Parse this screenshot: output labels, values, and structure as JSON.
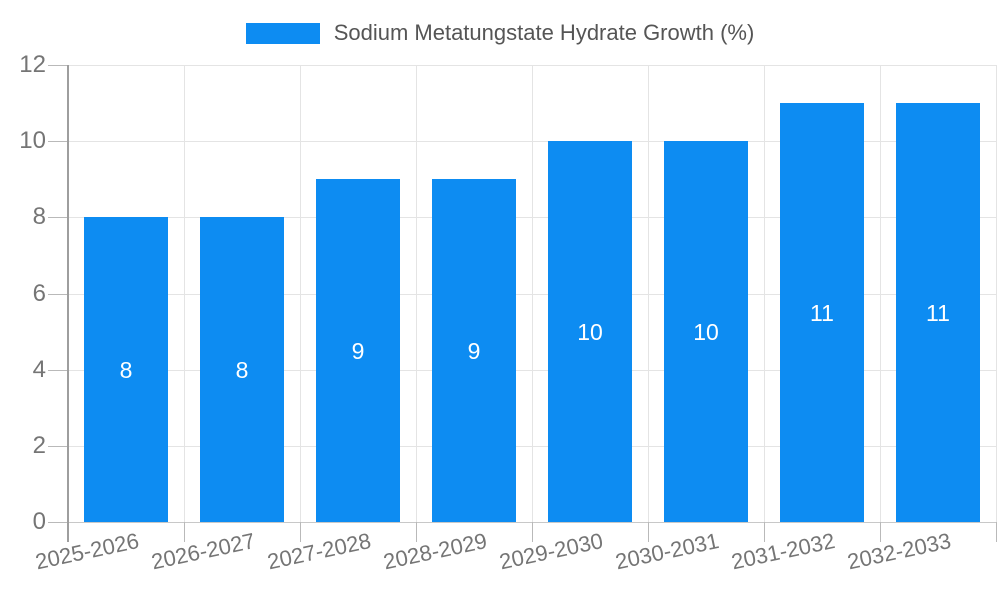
{
  "legend": {
    "label": "Sodium Metatungstate Hydrate Growth (%)"
  },
  "chart_data": {
    "type": "bar",
    "title": "Sodium Metatungstate Hydrate Growth (%)",
    "categories": [
      "2025-2026",
      "2026-2027",
      "2027-2028",
      "2028-2029",
      "2029-2030",
      "2030-2031",
      "2031-2032",
      "2032-2033"
    ],
    "values": [
      8,
      8,
      9,
      9,
      10,
      10,
      11,
      11
    ],
    "bar_value_labels": [
      "8",
      "8",
      "9",
      "9",
      "10",
      "10",
      "11",
      "11"
    ],
    "xlabel": "",
    "ylabel": "",
    "ylim": [
      0,
      12
    ],
    "yticks": [
      0,
      2,
      4,
      6,
      8,
      10,
      12
    ],
    "grid": true,
    "legend_position": "top-center",
    "x_tick_rotation_deg": -12,
    "colors": {
      "bar": "#0d8cf2",
      "bar_value_label": "#ffffff",
      "grid_line": "#e4e4e4",
      "axis_line": "#9e9e9e",
      "tick_label": "#757575",
      "legend_text": "#555555",
      "background": "#ffffff"
    }
  }
}
